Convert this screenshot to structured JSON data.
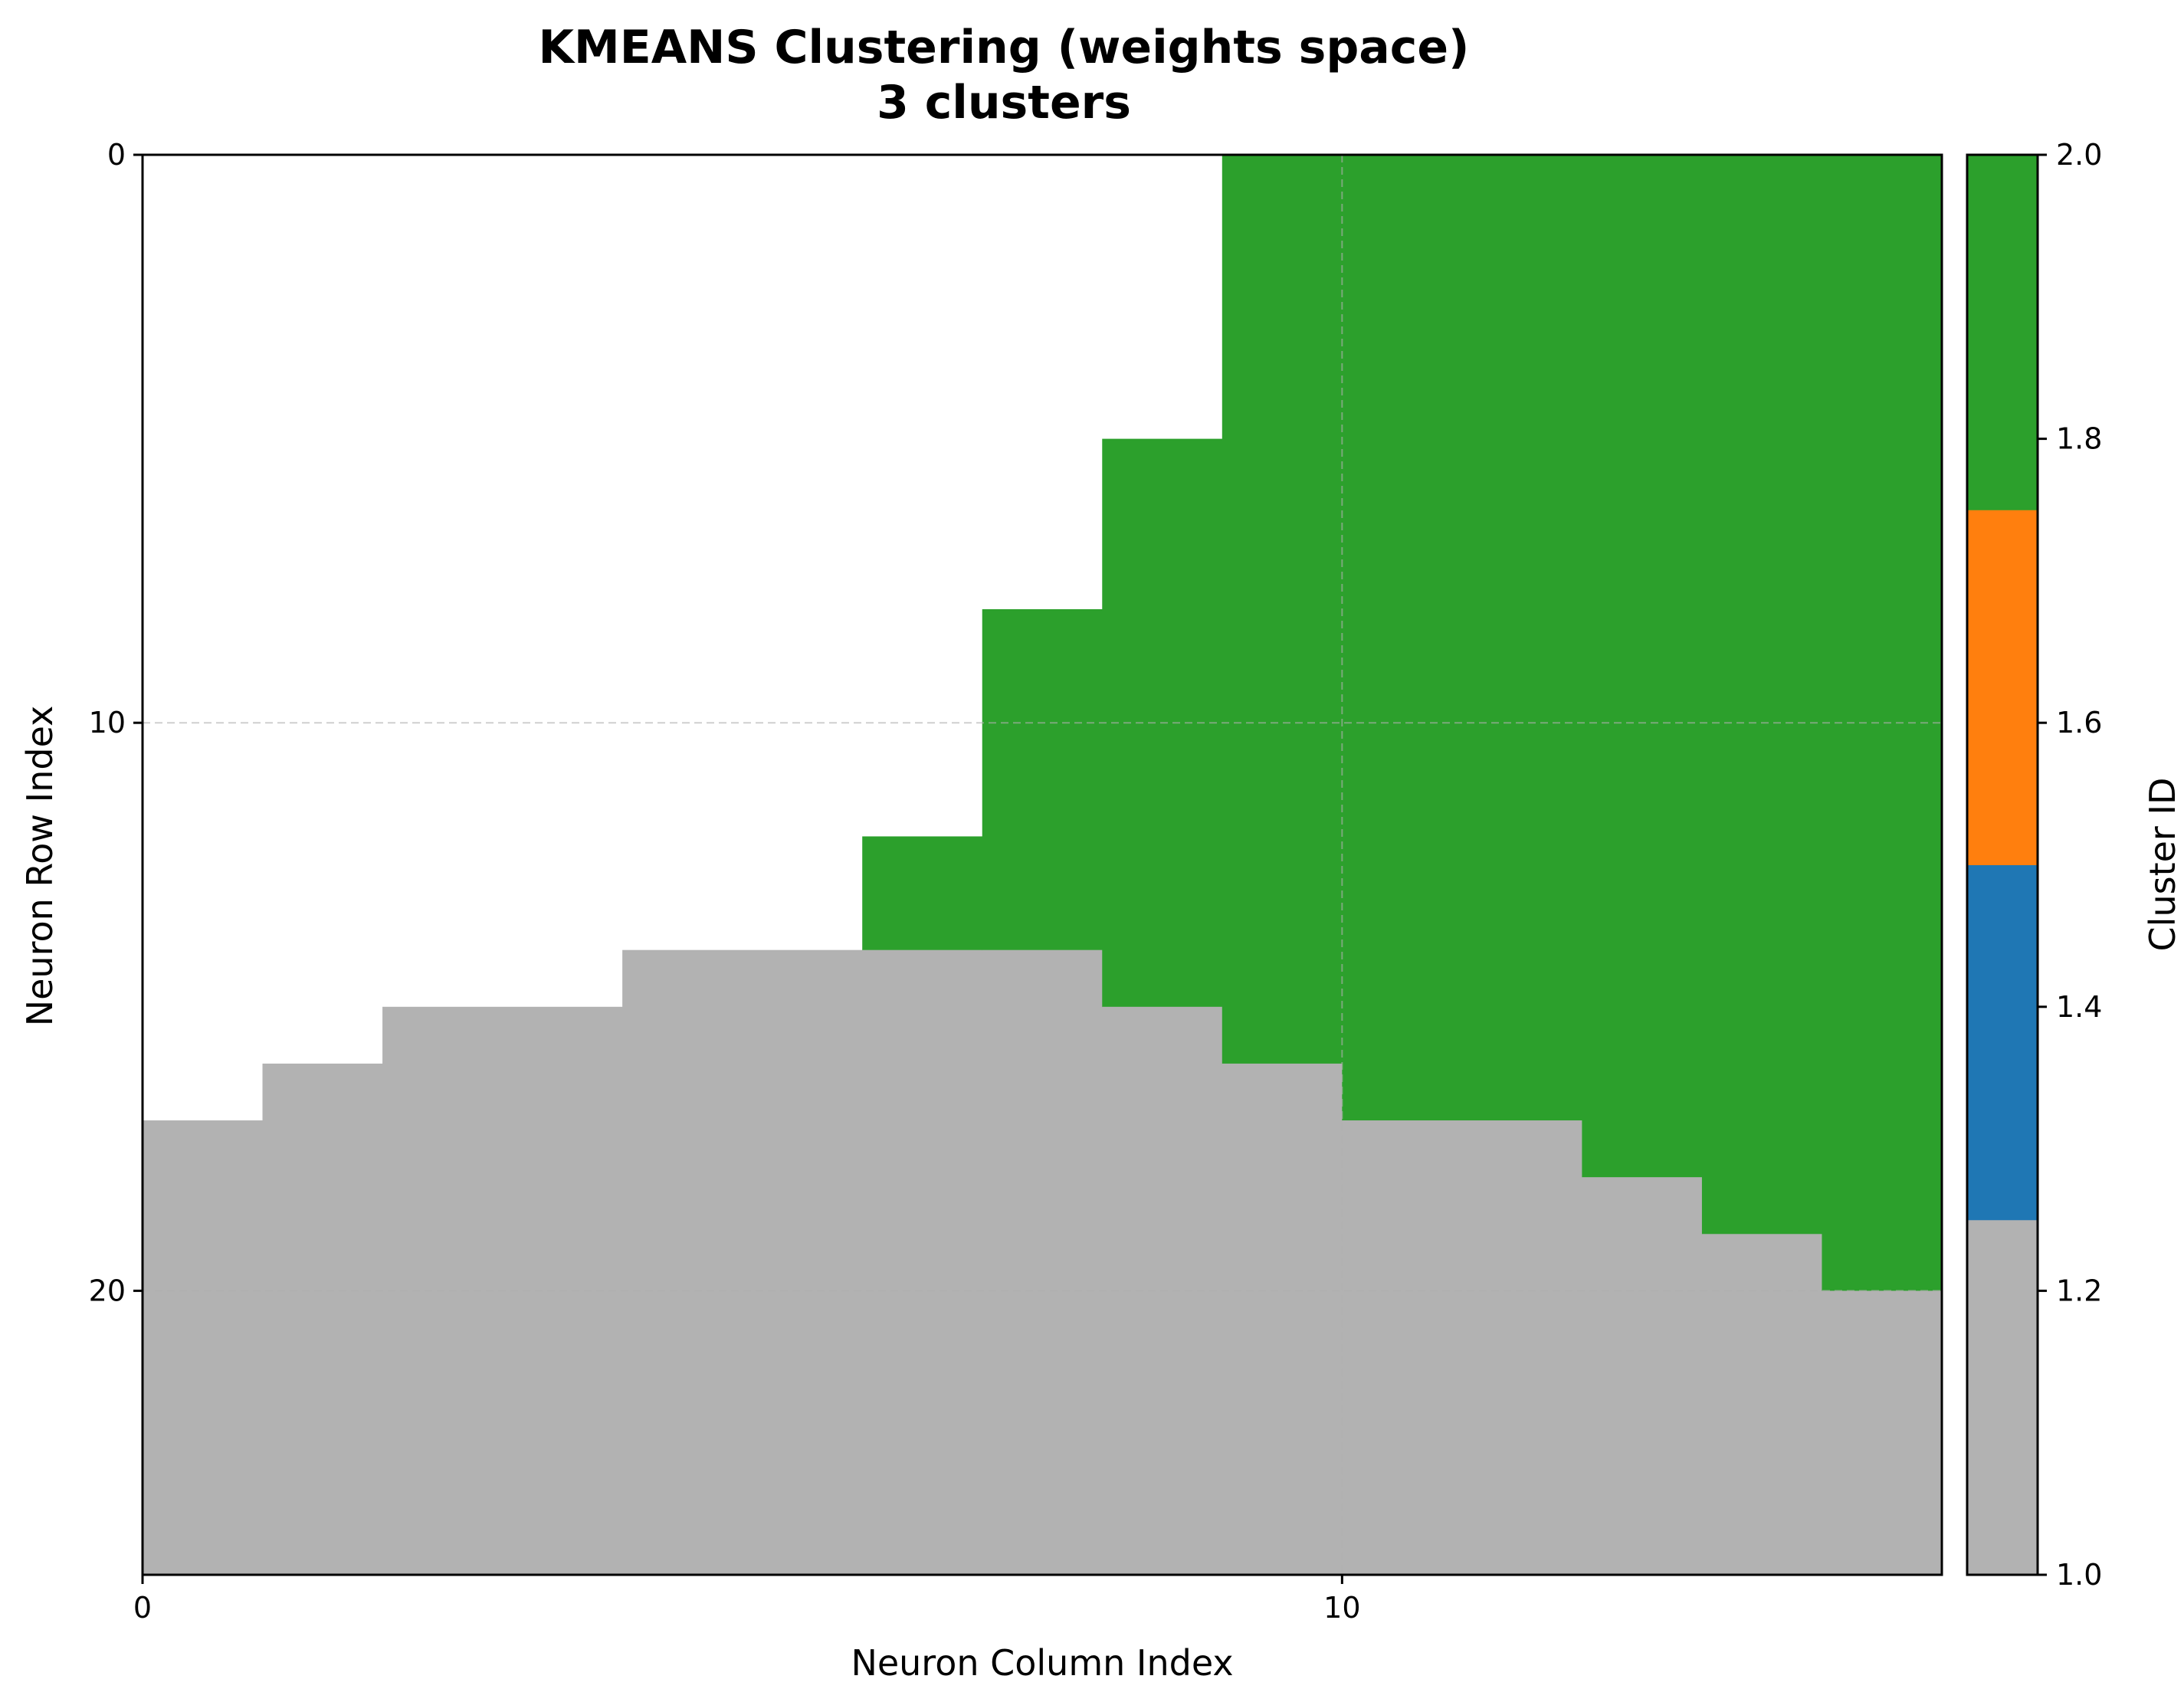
{
  "chart_data": {
    "type": "heatmap",
    "title": "KMEANS Clustering (weights space)",
    "subtitle": "3 clusters",
    "xlabel": "Neuron Column Index",
    "ylabel": "Neuron Row Index",
    "xlim": [
      0,
      15
    ],
    "ylim": [
      25,
      0
    ],
    "x_ticks": [
      0,
      10
    ],
    "y_ticks": [
      0,
      10,
      20
    ],
    "grid": true,
    "grid_style": "dashed",
    "colors": {
      "gray_cluster": "#b2b2b2",
      "blue_cluster": "#1f77b4",
      "orange_cluster": "#ff7f0e",
      "green_cluster": "#2ca02c",
      "empty": "#ffffff"
    },
    "columns": [
      {
        "x": [
          0,
          1
        ],
        "green_end": 0,
        "gray_start": 17
      },
      {
        "x": [
          1,
          2
        ],
        "green_end": 0,
        "gray_start": 16
      },
      {
        "x": [
          2,
          4
        ],
        "green_end": 0,
        "gray_start": 15
      },
      {
        "x": [
          4,
          6
        ],
        "green_end": 0,
        "gray_start": 14
      },
      {
        "x": [
          6,
          7
        ],
        "green_end": 14,
        "gray_start": 14,
        "green_start": 12
      },
      {
        "x": [
          7,
          8
        ],
        "green_end": 14,
        "gray_start": 14,
        "green_start": 8
      },
      {
        "x": [
          8,
          9
        ],
        "green_end": 15,
        "gray_start": 15,
        "green_start": 5
      },
      {
        "x": [
          9,
          10
        ],
        "green_end": 16,
        "gray_start": 16,
        "green_start": 0
      },
      {
        "x": [
          10,
          12
        ],
        "green_end": 17,
        "gray_start": 17,
        "green_start": 0
      },
      {
        "x": [
          12,
          13
        ],
        "green_end": 18,
        "gray_start": 18,
        "green_start": 0
      },
      {
        "x": [
          13,
          14
        ],
        "green_end": 19,
        "gray_start": 19,
        "green_start": 0
      },
      {
        "x": [
          14,
          15
        ],
        "green_end": 20,
        "gray_start": 20,
        "green_start": 0
      }
    ],
    "colorbar": {
      "label": "Cluster ID",
      "range": [
        1.0,
        2.0
      ],
      "ticks": [
        "1.0",
        "1.2",
        "1.4",
        "1.6",
        "1.8",
        "2.0"
      ],
      "segments": [
        {
          "from": 1.0,
          "to": 1.25,
          "color": "#b2b2b2"
        },
        {
          "from": 1.25,
          "to": 1.5,
          "color": "#1f77b4"
        },
        {
          "from": 1.5,
          "to": 1.75,
          "color": "#ff7f0e"
        },
        {
          "from": 1.75,
          "to": 2.0,
          "color": "#2ca02c"
        }
      ]
    }
  }
}
